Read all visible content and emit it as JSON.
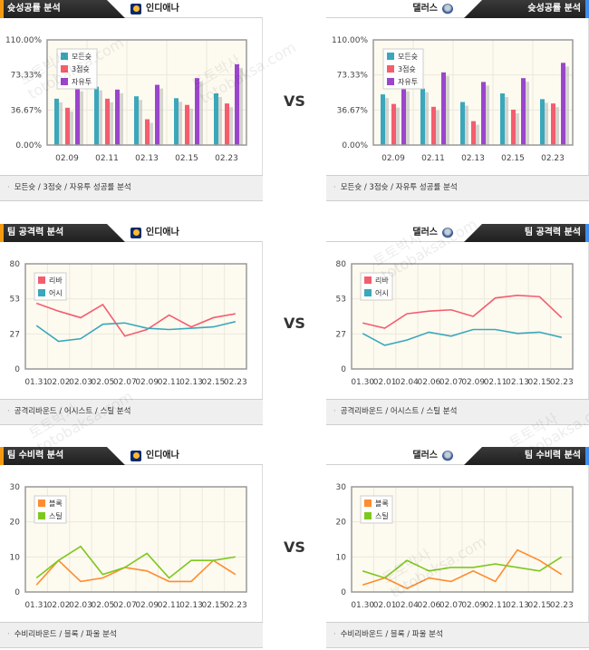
{
  "vs_label": "VS",
  "watermark": {
    "line1": "토토박사",
    "line2": "totobaksa.com"
  },
  "colors": {
    "blue": "#3aa7bb",
    "red": "#f45d6e",
    "purple": "#9b45cc",
    "orange": "#ff8c2e",
    "green": "#7ec81e"
  },
  "teams": {
    "home": "인디애나",
    "away": "댈러스"
  },
  "sections": [
    {
      "title": "슛성공률 분석",
      "footer": "모든슛 / 3점슛 / 자유투 성공률 분석"
    },
    {
      "title": "팀 공격력 분석",
      "footer": "공격리바운드 / 어시스트 / 스틸 분석"
    },
    {
      "title": "팀 수비력 분석",
      "footer": "수비리바운드 / 블록 / 파울 분석"
    }
  ],
  "chart_data": [
    {
      "type": "bar",
      "team": "인디애나",
      "ylim": [
        0,
        110
      ],
      "yticks": [
        "0.00%",
        "36.67%",
        "73.33%",
        "110.00%"
      ],
      "categories": [
        "02.09",
        "02.11",
        "02.13",
        "02.15",
        "02.23"
      ],
      "series": [
        {
          "name": "모든슛",
          "color": "#3aa7bb",
          "values": [
            48.5,
            61,
            51,
            49,
            54
          ]
        },
        {
          "name": "3점슛",
          "color": "#f45d6e",
          "values": [
            39,
            48.5,
            27,
            42,
            43.5
          ]
        },
        {
          "name": "자유투",
          "color": "#9b45cc",
          "values": [
            60,
            58,
            63,
            70,
            84.5
          ]
        }
      ]
    },
    {
      "type": "bar",
      "team": "댈러스",
      "ylim": [
        0,
        110
      ],
      "yticks": [
        "0.00%",
        "36.67%",
        "73.33%",
        "110.00%"
      ],
      "categories": [
        "02.09",
        "02.11",
        "02.13",
        "02.15",
        "02.23"
      ],
      "series": [
        {
          "name": "모든슛",
          "color": "#3aa7bb",
          "values": [
            53,
            59,
            45,
            54,
            48
          ]
        },
        {
          "name": "3점슛",
          "color": "#f45d6e",
          "values": [
            43,
            40,
            25,
            37,
            43.5
          ]
        },
        {
          "name": "자유투",
          "color": "#9b45cc",
          "values": [
            60,
            76,
            66,
            70,
            86
          ]
        }
      ]
    },
    {
      "type": "line",
      "team": "인디애나",
      "ylim": [
        0,
        80
      ],
      "yticks": [
        "0",
        "27",
        "53",
        "80"
      ],
      "categories": [
        "01.31",
        "02.02",
        "02.03",
        "02.05",
        "02.07",
        "02.09",
        "02.11",
        "02.13",
        "02.15",
        "02.23"
      ],
      "series": [
        {
          "name": "리바",
          "color": "#f45d6e",
          "values": [
            50,
            44,
            39,
            49,
            25,
            30,
            41,
            32,
            39,
            42
          ]
        },
        {
          "name": "어시",
          "color": "#3aa7bb",
          "values": [
            33,
            21,
            23,
            34,
            35,
            31,
            30,
            31,
            32,
            36
          ]
        }
      ]
    },
    {
      "type": "line",
      "team": "댈러스",
      "ylim": [
        0,
        80
      ],
      "yticks": [
        "0",
        "27",
        "53",
        "80"
      ],
      "categories": [
        "01.30",
        "02.01",
        "02.04",
        "02.06",
        "02.07",
        "02.09",
        "02.11",
        "02.13",
        "02.15",
        "02.23"
      ],
      "series": [
        {
          "name": "리바",
          "color": "#f45d6e",
          "values": [
            35,
            31,
            42,
            44,
            45,
            40,
            54,
            56,
            55,
            39
          ]
        },
        {
          "name": "어시",
          "color": "#3aa7bb",
          "values": [
            27,
            18,
            22,
            28,
            25,
            30,
            30,
            27,
            28,
            24
          ]
        }
      ]
    },
    {
      "type": "line",
      "team": "인디애나",
      "ylim": [
        0,
        30
      ],
      "yticks": [
        "0",
        "10",
        "20",
        "30"
      ],
      "categories": [
        "01.31",
        "02.02",
        "02.03",
        "02.05",
        "02.07",
        "02.09",
        "02.11",
        "02.13",
        "02.15",
        "02.23"
      ],
      "series": [
        {
          "name": "블록",
          "color": "#ff8c2e",
          "values": [
            2,
            9,
            3,
            4,
            7,
            6,
            3,
            3,
            9,
            5
          ]
        },
        {
          "name": "스틸",
          "color": "#7ec81e",
          "values": [
            4,
            9,
            13,
            5,
            7,
            11,
            4,
            9,
            9,
            10
          ]
        }
      ]
    },
    {
      "type": "line",
      "team": "댈러스",
      "ylim": [
        0,
        30
      ],
      "yticks": [
        "0",
        "10",
        "20",
        "30"
      ],
      "categories": [
        "01.30",
        "02.01",
        "02.04",
        "02.06",
        "02.07",
        "02.09",
        "02.11",
        "02.13",
        "02.15",
        "02.23"
      ],
      "series": [
        {
          "name": "블록",
          "color": "#ff8c2e",
          "values": [
            2,
            4,
            1,
            4,
            3,
            6,
            3,
            12,
            9,
            5
          ]
        },
        {
          "name": "스틸",
          "color": "#7ec81e",
          "values": [
            6,
            4,
            9,
            6,
            7,
            7,
            8,
            7,
            6,
            10
          ]
        }
      ]
    }
  ]
}
